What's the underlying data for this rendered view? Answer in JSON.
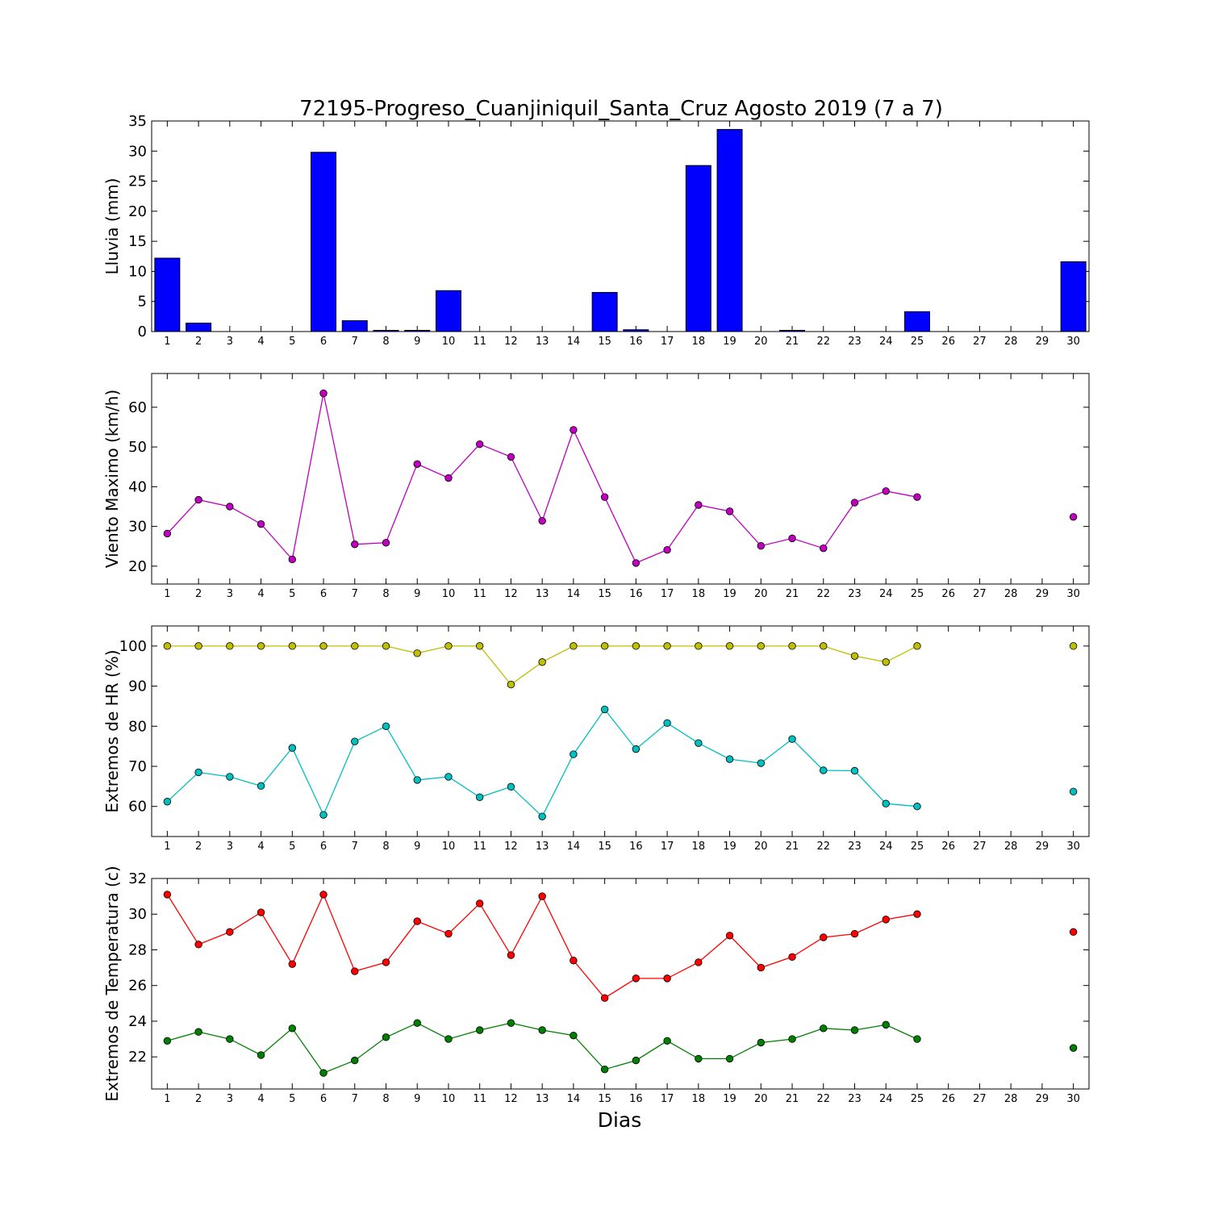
{
  "chart_data": [
    {
      "type": "bar",
      "title": "72195-Progreso_Cuanjiniquil_Santa_Cruz Agosto 2019  (7 a 7)",
      "ylabel": "Lluvia (mm)",
      "xlabel": "",
      "x": [
        1,
        2,
        3,
        4,
        5,
        6,
        7,
        8,
        9,
        10,
        11,
        12,
        13,
        14,
        15,
        16,
        17,
        18,
        19,
        20,
        21,
        22,
        23,
        24,
        25,
        26,
        27,
        28,
        29,
        30
      ],
      "values": [
        12.2,
        1.4,
        0,
        0,
        0,
        29.8,
        1.8,
        0.2,
        0.2,
        6.8,
        0,
        0,
        0,
        0,
        6.5,
        0.3,
        0,
        27.6,
        33.6,
        0,
        0.2,
        0,
        0,
        0,
        3.3,
        0,
        0,
        0,
        0,
        11.6
      ],
      "color": "#0000ff",
      "ylim": [
        0,
        35
      ],
      "yticks": [
        0,
        5,
        10,
        15,
        20,
        25,
        30,
        35
      ],
      "xlim": [
        0.5,
        30.5
      ]
    },
    {
      "type": "line",
      "title": "",
      "ylabel": "Viento Maximo (km/h)",
      "xlabel": "",
      "x": [
        1,
        2,
        3,
        4,
        5,
        6,
        7,
        8,
        9,
        10,
        11,
        12,
        13,
        14,
        15,
        16,
        17,
        18,
        19,
        20,
        21,
        22,
        23,
        24,
        25,
        26,
        27,
        28,
        29,
        30
      ],
      "series": [
        {
          "values": [
            28.2,
            36.7,
            35.0,
            30.6,
            21.7,
            63.5,
            25.5,
            25.9,
            45.7,
            42.2,
            50.7,
            47.5,
            31.4,
            54.3,
            37.4,
            20.8,
            24.1,
            35.4,
            33.8,
            25.1,
            27.0,
            24.5,
            36.0,
            38.9,
            37.4,
            null,
            null,
            null,
            null,
            32.4
          ],
          "color": "#bf00bf"
        }
      ],
      "ylim": [
        15.5,
        68.5
      ],
      "yticks": [
        20,
        30,
        40,
        50,
        60
      ],
      "xlim": [
        0.5,
        30.5
      ]
    },
    {
      "type": "line",
      "title": "",
      "ylabel": "Extremos de HR (%)",
      "xlabel": "",
      "x": [
        1,
        2,
        3,
        4,
        5,
        6,
        7,
        8,
        9,
        10,
        11,
        12,
        13,
        14,
        15,
        16,
        17,
        18,
        19,
        20,
        21,
        22,
        23,
        24,
        25,
        26,
        27,
        28,
        29,
        30
      ],
      "series": [
        {
          "values": [
            100,
            100,
            100,
            100,
            100,
            100,
            100,
            100,
            98.2,
            100,
            100,
            90.4,
            96.0,
            100,
            100,
            100,
            100,
            100,
            100,
            100,
            100,
            100,
            97.5,
            96.0,
            100,
            null,
            null,
            null,
            null,
            100
          ],
          "color": "#bfbf00"
        },
        {
          "values": [
            61.2,
            68.5,
            67.4,
            65.1,
            74.6,
            57.9,
            76.2,
            80.0,
            66.6,
            67.4,
            62.3,
            64.9,
            57.5,
            73.0,
            84.2,
            74.3,
            80.8,
            75.8,
            71.8,
            70.8,
            76.8,
            69.0,
            68.9,
            60.7,
            60.0,
            null,
            null,
            null,
            null,
            63.7
          ],
          "color": "#00bfbf"
        }
      ],
      "ylim": [
        52.5,
        105
      ],
      "yticks": [
        60,
        70,
        80,
        90,
        100
      ],
      "xlim": [
        0.5,
        30.5
      ]
    },
    {
      "type": "line",
      "title": "",
      "ylabel": "Extremos de Temperatura (c)",
      "xlabel": "Dias",
      "x": [
        1,
        2,
        3,
        4,
        5,
        6,
        7,
        8,
        9,
        10,
        11,
        12,
        13,
        14,
        15,
        16,
        17,
        18,
        19,
        20,
        21,
        22,
        23,
        24,
        25,
        26,
        27,
        28,
        29,
        30
      ],
      "series": [
        {
          "values": [
            31.1,
            28.3,
            29.0,
            30.1,
            27.2,
            31.1,
            26.8,
            27.3,
            29.6,
            28.9,
            30.6,
            27.7,
            31.0,
            27.4,
            25.3,
            26.4,
            26.4,
            27.3,
            28.8,
            27.0,
            27.6,
            28.7,
            28.9,
            29.7,
            30.0,
            null,
            null,
            null,
            null,
            29.0
          ],
          "color": "#ff0000"
        },
        {
          "values": [
            22.9,
            23.4,
            23.0,
            22.1,
            23.6,
            21.1,
            21.8,
            23.1,
            23.9,
            23.0,
            23.5,
            23.9,
            23.5,
            23.2,
            21.3,
            21.8,
            22.9,
            21.9,
            21.9,
            22.8,
            23.0,
            23.6,
            23.5,
            23.8,
            23.0,
            null,
            null,
            null,
            null,
            22.5
          ],
          "color": "#008000"
        }
      ],
      "ylim": [
        20.2,
        32
      ],
      "yticks": [
        22,
        24,
        26,
        28,
        30,
        32
      ],
      "xlim": [
        0.5,
        30.5
      ]
    }
  ]
}
